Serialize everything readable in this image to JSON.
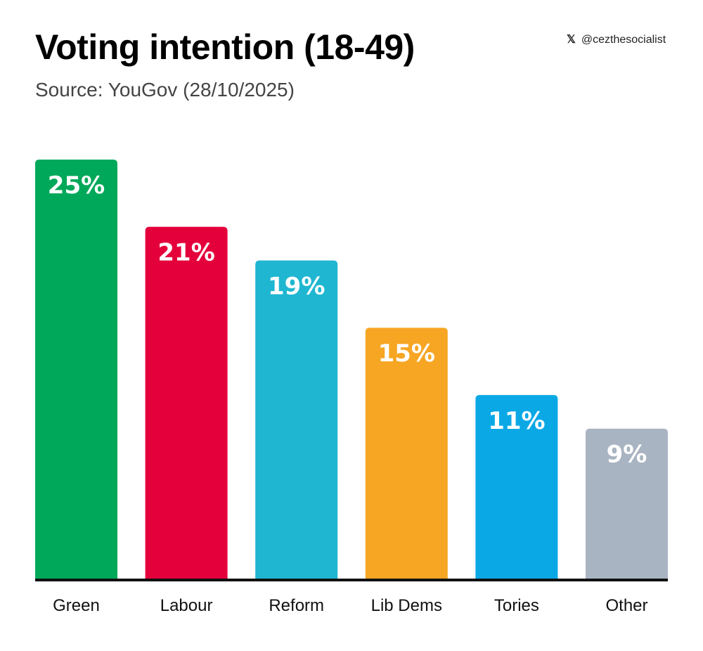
{
  "handle": {
    "icon": "x-logo-icon",
    "text": "@cezthesocialist"
  },
  "chart_data": {
    "type": "bar",
    "title": "Voting intention (18-49)",
    "subtitle": "Source: YouGov (28/10/2025)",
    "xlabel": "",
    "ylabel": "",
    "ylim": [
      0,
      25
    ],
    "grid": false,
    "categories": [
      "Green",
      "Labour",
      "Reform",
      "Lib Dems",
      "Tories",
      "Other"
    ],
    "values": [
      25,
      21,
      19,
      15,
      11,
      9
    ],
    "data_labels": [
      "25%",
      "21%",
      "19%",
      "15%",
      "11%",
      "9%"
    ],
    "colors": [
      "#00a85a",
      "#e4003b",
      "#1fb6d1",
      "#f6a623",
      "#0ba8e6",
      "#a9b4c2"
    ]
  }
}
